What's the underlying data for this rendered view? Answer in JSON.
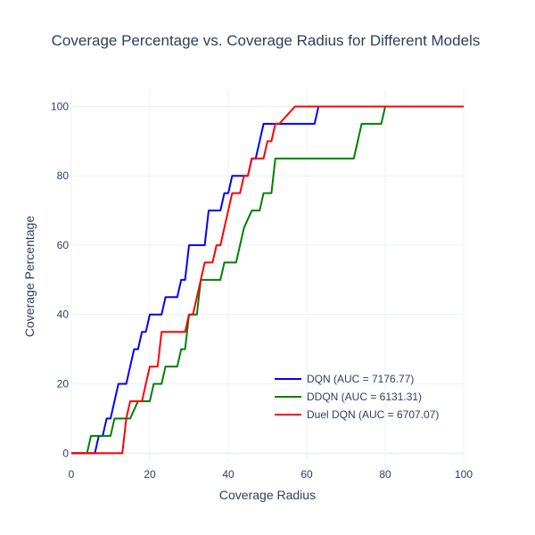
{
  "chart_data": {
    "type": "line",
    "title": "Coverage Percentage vs. Coverage Radius for Different Models",
    "xlabel": "Coverage Radius",
    "ylabel": "Coverage Percentage",
    "xlim": [
      0,
      100
    ],
    "ylim": [
      -2.5,
      105
    ],
    "xticks": [
      0,
      20,
      40,
      60,
      80,
      100
    ],
    "yticks": [
      0,
      20,
      40,
      60,
      80,
      100
    ],
    "grid": true,
    "legend_position": "bottom-right",
    "series": [
      {
        "name": "DQN (AUC = 7176.77)",
        "color": "#0000ff",
        "x": [
          0,
          6,
          7,
          8,
          9,
          10,
          11,
          12,
          13,
          14,
          15,
          16,
          17,
          18,
          19,
          20,
          21,
          23,
          24,
          26,
          27,
          28,
          29,
          30,
          31,
          34,
          35,
          37,
          38,
          39,
          40,
          41,
          43,
          44,
          45,
          46,
          47,
          48,
          49,
          50,
          52,
          58,
          62,
          63,
          100
        ],
        "y": [
          0,
          0,
          5,
          5,
          10,
          10,
          15,
          20,
          20,
          20,
          25,
          30,
          30,
          35,
          35,
          40,
          40,
          40,
          45,
          45,
          45,
          50,
          50,
          60,
          60,
          60,
          70,
          70,
          70,
          75,
          75,
          80,
          80,
          80,
          80,
          85,
          85,
          90,
          95,
          95,
          95,
          95,
          95,
          100,
          100
        ]
      },
      {
        "name": "DDQN (AUC = 6131.31)",
        "color": "#008000",
        "x": [
          0,
          4,
          5,
          7,
          8,
          10,
          11,
          12,
          14,
          15,
          17,
          18,
          20,
          21,
          22,
          23,
          24,
          25,
          27,
          28,
          29,
          30,
          31,
          32,
          33,
          34,
          35,
          36,
          37,
          38,
          39,
          40,
          42,
          44,
          46,
          47,
          48,
          49,
          50,
          51,
          52,
          60,
          65,
          70,
          72,
          74,
          78,
          79,
          80,
          100
        ],
        "y": [
          0,
          0,
          5,
          5,
          5,
          5,
          10,
          10,
          10,
          10,
          15,
          15,
          15,
          20,
          20,
          20,
          25,
          25,
          25,
          30,
          30,
          40,
          40,
          40,
          50,
          50,
          50,
          50,
          50,
          50,
          55,
          55,
          55,
          65,
          70,
          70,
          70,
          75,
          75,
          75,
          85,
          85,
          85,
          85,
          85,
          95,
          95,
          95,
          100,
          100
        ]
      },
      {
        "name": "Duel DQN (AUC = 6707.07)",
        "color": "#ff0000",
        "x": [
          0,
          13,
          14,
          15,
          16,
          17,
          18,
          19,
          20,
          22,
          23,
          25,
          27,
          29,
          30,
          31,
          32,
          33,
          34,
          35,
          36,
          37,
          38,
          39,
          40,
          41,
          42,
          43,
          44,
          45,
          46,
          47,
          48,
          49,
          50,
          51,
          52,
          53,
          57,
          62,
          70,
          80,
          90,
          100
        ],
        "y": [
          0,
          0,
          10,
          15,
          15,
          15,
          15,
          20,
          25,
          25,
          35,
          35,
          35,
          35,
          40,
          40,
          45,
          50,
          55,
          55,
          55,
          60,
          60,
          65,
          70,
          75,
          75,
          75,
          80,
          80,
          85,
          85,
          85,
          85,
          90,
          90,
          95,
          95,
          100,
          100,
          100,
          100,
          100,
          100
        ]
      }
    ]
  }
}
